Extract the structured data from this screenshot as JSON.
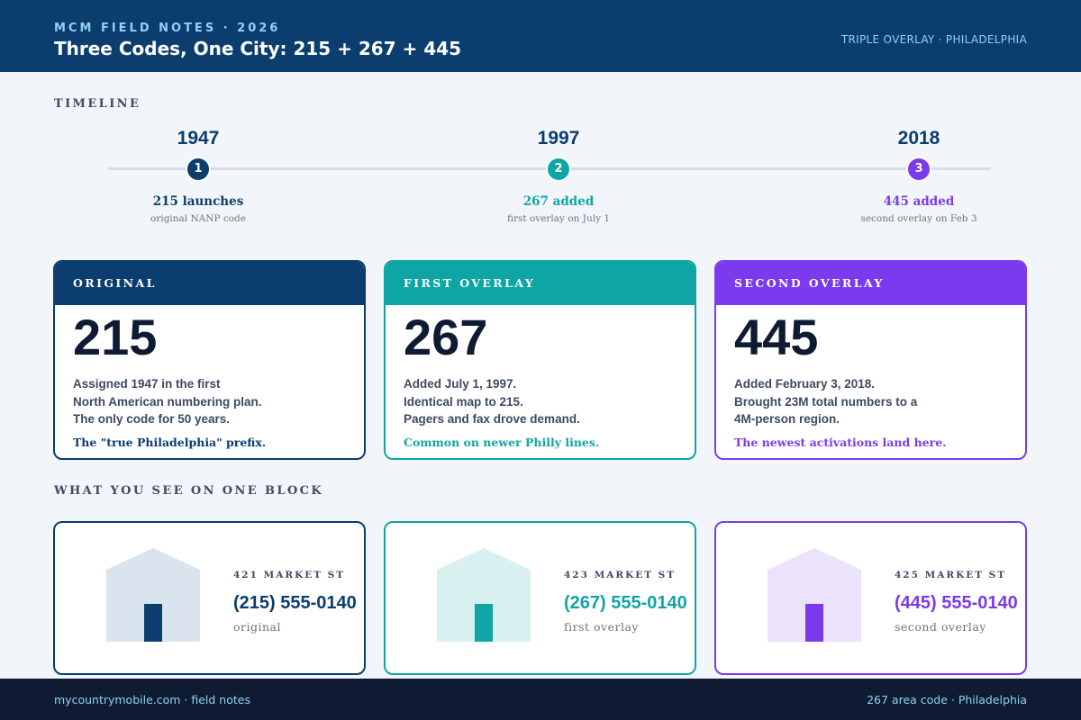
{
  "header": {
    "kicker": "MCM FIELD NOTES · 2026",
    "title": "Three Codes, One City: 215 + 267 + 445",
    "right_label": "TRIPLE OVERLAY · PHILADELPHIA"
  },
  "colors": {
    "navy": "#0b3d6e",
    "teal": "#10a5a5",
    "purple": "#7b3aed",
    "page_bg": "#f2f6fa",
    "footer_bg": "#0f1b33"
  },
  "timeline": {
    "label": "TIMELINE",
    "items": [
      {
        "year": "1947",
        "step": "1",
        "event": "215 launches",
        "note": "original NANP code"
      },
      {
        "year": "1997",
        "step": "2",
        "event": "267 added",
        "note": "first overlay on July 1"
      },
      {
        "year": "2018",
        "step": "3",
        "event": "445 added",
        "note": "second overlay on Feb 3"
      }
    ]
  },
  "cards": [
    {
      "heading": "ORIGINAL",
      "code": "215",
      "lines": [
        "Assigned 1947 in the first",
        "North American numbering plan.",
        "The only code for 50 years."
      ],
      "footnote": "The \"true Philadelphia\" prefix."
    },
    {
      "heading": "FIRST OVERLAY",
      "code": "267",
      "lines": [
        "Added July 1, 1997.",
        "Identical map to 215.",
        "Pagers and fax drove demand."
      ],
      "footnote": "Common on newer Philly lines."
    },
    {
      "heading": "SECOND OVERLAY",
      "code": "445",
      "lines": [
        "Added February 3, 2018.",
        "Brought 23M total numbers to a",
        "4M-person region."
      ],
      "footnote": "The newest activations land here."
    }
  ],
  "block": {
    "label": "WHAT YOU SEE ON ONE BLOCK",
    "houses": [
      {
        "address": "421 MARKET ST",
        "phone": "(215) 555-0140",
        "label": "original"
      },
      {
        "address": "423 MARKET ST",
        "phone": "(267) 555-0140",
        "label": "first overlay"
      },
      {
        "address": "425 MARKET ST",
        "phone": "(445) 555-0140",
        "label": "second overlay"
      }
    ]
  },
  "footer": {
    "left": "mycountrymobile.com · field notes",
    "right": "267 area code · Philadelphia"
  }
}
